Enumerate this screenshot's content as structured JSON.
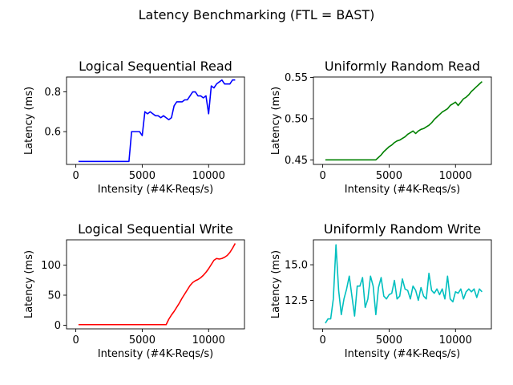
{
  "figure": {
    "title": "Latency Benchmarking (FTL = BAST)"
  },
  "chart_data": [
    {
      "type": "line",
      "title": "Logical Sequential Read",
      "xlabel": "Intensity (#4K-Reqs/s)",
      "ylabel": "Latency (ms)",
      "color": "#0000ff",
      "xlim": [
        -700,
        12700
      ],
      "ylim": [
        0.435,
        0.875
      ],
      "xticks": [
        0,
        5000,
        10000
      ],
      "yticks": [
        0.6,
        0.8
      ],
      "ytick_labels": [
        "0.6",
        "0.8"
      ],
      "x": [
        200,
        400,
        600,
        800,
        1000,
        1200,
        1400,
        1600,
        1800,
        2000,
        2200,
        2400,
        2600,
        2800,
        3000,
        3200,
        3400,
        3600,
        3800,
        4000,
        4200,
        4400,
        4600,
        4800,
        5000,
        5200,
        5400,
        5600,
        5800,
        6000,
        6200,
        6400,
        6600,
        6800,
        7000,
        7200,
        7400,
        7600,
        7800,
        8000,
        8200,
        8400,
        8600,
        8800,
        9000,
        9200,
        9400,
        9600,
        9800,
        10000,
        10200,
        10400,
        10600,
        10800,
        11000,
        11200,
        11400,
        11600,
        11800,
        12000
      ],
      "y": [
        0.45,
        0.45,
        0.45,
        0.45,
        0.45,
        0.45,
        0.45,
        0.45,
        0.45,
        0.45,
        0.45,
        0.45,
        0.45,
        0.45,
        0.45,
        0.45,
        0.45,
        0.45,
        0.45,
        0.45,
        0.6,
        0.6,
        0.6,
        0.6,
        0.58,
        0.7,
        0.69,
        0.7,
        0.69,
        0.68,
        0.68,
        0.67,
        0.68,
        0.67,
        0.66,
        0.67,
        0.73,
        0.75,
        0.75,
        0.75,
        0.76,
        0.76,
        0.78,
        0.8,
        0.8,
        0.78,
        0.78,
        0.77,
        0.78,
        0.69,
        0.83,
        0.82,
        0.84,
        0.85,
        0.86,
        0.84,
        0.84,
        0.84,
        0.86,
        0.86
      ]
    },
    {
      "type": "line",
      "title": "Uniformly Random Read",
      "xlabel": "Intensity (#4K-Reqs/s)",
      "ylabel": "Latency (ms)",
      "color": "#008000",
      "xlim": [
        -700,
        12700
      ],
      "ylim": [
        0.4445,
        0.5505
      ],
      "xticks": [
        0,
        5000,
        10000
      ],
      "yticks": [
        0.45,
        0.5,
        0.55
      ],
      "ytick_labels": [
        "0.45",
        "0.50",
        "0.55"
      ],
      "x": [
        200,
        400,
        600,
        800,
        1000,
        1200,
        1400,
        1600,
        1800,
        2000,
        2200,
        2400,
        2600,
        2800,
        3000,
        3200,
        3400,
        3600,
        3800,
        4000,
        4200,
        4400,
        4600,
        4800,
        5000,
        5200,
        5400,
        5600,
        5800,
        6000,
        6200,
        6400,
        6600,
        6800,
        7000,
        7200,
        7400,
        7600,
        7800,
        8000,
        8200,
        8400,
        8600,
        8800,
        9000,
        9200,
        9400,
        9600,
        9800,
        10000,
        10200,
        10400,
        10600,
        10800,
        11000,
        11200,
        11400,
        11600,
        11800,
        12000
      ],
      "y": [
        0.45,
        0.45,
        0.45,
        0.45,
        0.45,
        0.45,
        0.45,
        0.45,
        0.45,
        0.45,
        0.45,
        0.45,
        0.45,
        0.45,
        0.45,
        0.45,
        0.45,
        0.45,
        0.45,
        0.45,
        0.453,
        0.456,
        0.46,
        0.463,
        0.466,
        0.468,
        0.471,
        0.473,
        0.474,
        0.476,
        0.478,
        0.481,
        0.483,
        0.485,
        0.482,
        0.485,
        0.487,
        0.488,
        0.49,
        0.492,
        0.495,
        0.499,
        0.502,
        0.505,
        0.508,
        0.51,
        0.512,
        0.516,
        0.518,
        0.52,
        0.516,
        0.52,
        0.524,
        0.526,
        0.529,
        0.533,
        0.536,
        0.539,
        0.542,
        0.545
      ]
    },
    {
      "type": "line",
      "title": "Logical Sequential Write",
      "xlabel": "Intensity (#4K-Reqs/s)",
      "ylabel": "Latency (ms)",
      "color": "#ff0000",
      "xlim": [
        -700,
        12700
      ],
      "ylim": [
        -6,
        142
      ],
      "xticks": [
        0,
        5000,
        10000
      ],
      "yticks": [
        0,
        50,
        100
      ],
      "ytick_labels": [
        "0",
        "50",
        "100"
      ],
      "x": [
        200,
        400,
        600,
        800,
        1000,
        1200,
        1400,
        1600,
        1800,
        2000,
        2200,
        2400,
        2600,
        2800,
        3000,
        3200,
        3400,
        3600,
        3800,
        4000,
        4200,
        4400,
        4600,
        4800,
        5000,
        5200,
        5400,
        5600,
        5800,
        6000,
        6200,
        6400,
        6600,
        6800,
        7000,
        7200,
        7400,
        7600,
        7800,
        8000,
        8200,
        8400,
        8600,
        8800,
        9000,
        9200,
        9400,
        9600,
        9800,
        10000,
        10200,
        10400,
        10600,
        10800,
        11000,
        11200,
        11400,
        11600,
        11800,
        12000
      ],
      "y": [
        1,
        1,
        1,
        1,
        1,
        1,
        1,
        1,
        1,
        1,
        1,
        1,
        1,
        1,
        1,
        1,
        1,
        1,
        1,
        1,
        1,
        1,
        1,
        1,
        1,
        1,
        1,
        1,
        1,
        1,
        1,
        1,
        1,
        1,
        10,
        17,
        23,
        30,
        37,
        45,
        52,
        59,
        66,
        71,
        74,
        76,
        79,
        83,
        88,
        94,
        101,
        108,
        111,
        110,
        111,
        113,
        116,
        121,
        128,
        136
      ]
    },
    {
      "type": "line",
      "title": "Uniformly Random Write",
      "xlabel": "Intensity (#4K-Reqs/s)",
      "ylabel": "Latency (ms)",
      "color": "#00bfbf",
      "xlim": [
        -700,
        12700
      ],
      "ylim": [
        10.5,
        16.75
      ],
      "xticks": [
        0,
        5000,
        10000
      ],
      "yticks": [
        12.5,
        15.0
      ],
      "ytick_labels": [
        "12.5",
        "15.0"
      ],
      "x": [
        200,
        400,
        600,
        800,
        1000,
        1200,
        1400,
        1600,
        1800,
        2000,
        2200,
        2400,
        2600,
        2800,
        3000,
        3200,
        3400,
        3600,
        3800,
        4000,
        4200,
        4400,
        4600,
        4800,
        5000,
        5200,
        5400,
        5600,
        5800,
        6000,
        6200,
        6400,
        6600,
        6800,
        7000,
        7200,
        7400,
        7600,
        7800,
        8000,
        8200,
        8400,
        8600,
        8800,
        9000,
        9200,
        9400,
        9600,
        9800,
        10000,
        10200,
        10400,
        10600,
        10800,
        11000,
        11200,
        11400,
        11600,
        11800,
        12000
      ],
      "y": [
        10.9,
        11.2,
        11.2,
        12.6,
        16.4,
        13.2,
        11.5,
        12.6,
        13.3,
        14.2,
        12.8,
        11.4,
        13.5,
        13.5,
        14.1,
        12.0,
        12.6,
        14.2,
        13.5,
        11.5,
        13.4,
        14.1,
        12.8,
        12.6,
        12.9,
        13.0,
        13.9,
        12.6,
        12.8,
        14.0,
        13.3,
        13.2,
        12.6,
        13.5,
        13.2,
        12.5,
        13.4,
        12.8,
        12.6,
        14.4,
        13.2,
        13.0,
        13.3,
        12.9,
        13.3,
        12.6,
        14.2,
        12.6,
        12.4,
        13.1,
        13.0,
        13.3,
        12.6,
        13.1,
        13.3,
        13.1,
        13.3,
        12.7,
        13.3,
        13.1
      ]
    }
  ]
}
